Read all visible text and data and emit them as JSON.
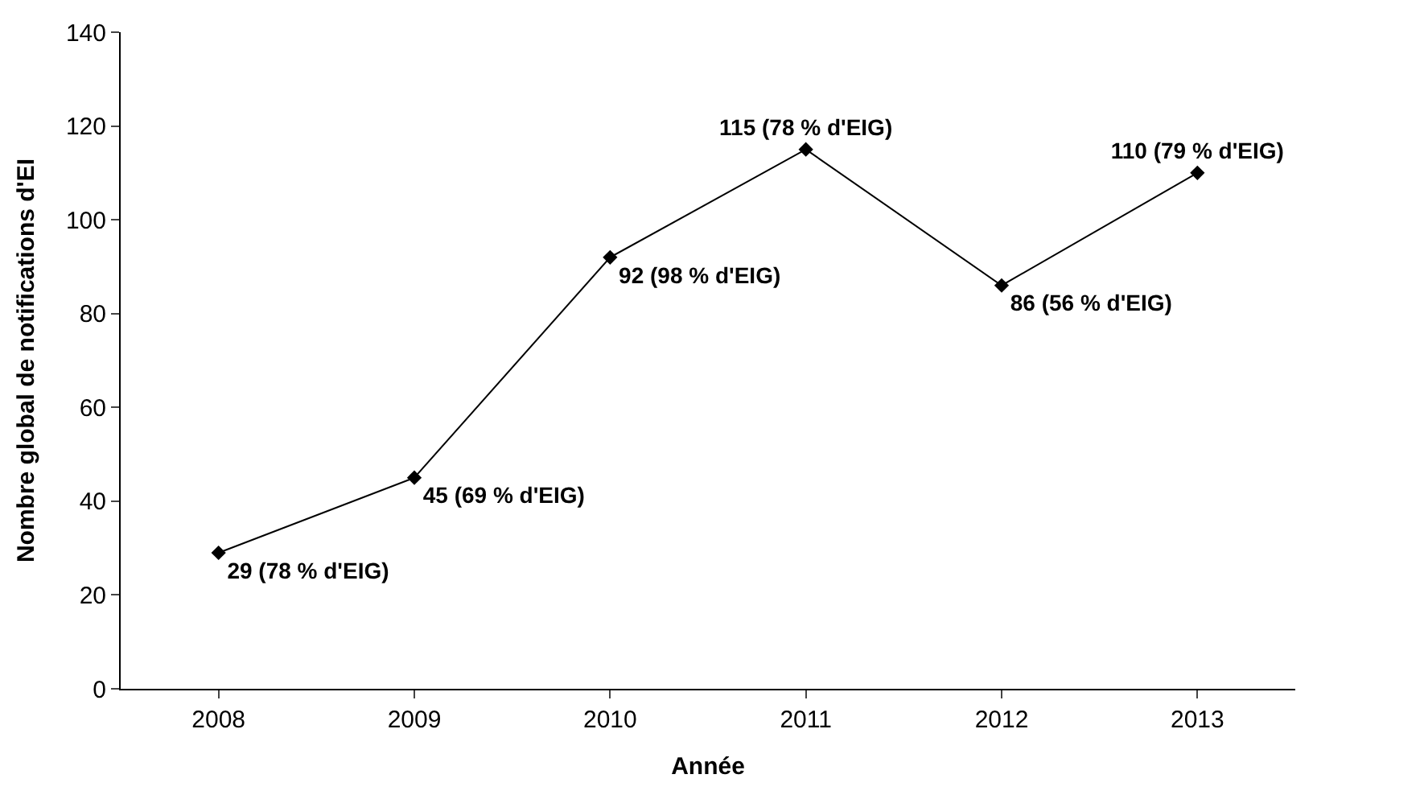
{
  "chart_data": {
    "type": "line",
    "xlabel": "Année",
    "ylabel": "Nombre global de notifications d'EI",
    "categories": [
      "2008",
      "2009",
      "2010",
      "2011",
      "2012",
      "2013"
    ],
    "series": [
      {
        "color": "#000000",
        "values": [
          29,
          45,
          92,
          115,
          86,
          110
        ],
        "value_labels": [
          "29 (78 % d'EIG)",
          "45 (69 % d'EIG)",
          "92 (98 % d'EIG)",
          "115 (78 % d'EIG)",
          "86 (56 % d'EIG)",
          "110 (79 % d'EIG)"
        ]
      }
    ],
    "ylim": [
      0,
      140
    ],
    "yticks": [
      0,
      20,
      40,
      60,
      80,
      100,
      120,
      140
    ],
    "legend": false,
    "marker": "diamond",
    "line_style": "solid"
  }
}
